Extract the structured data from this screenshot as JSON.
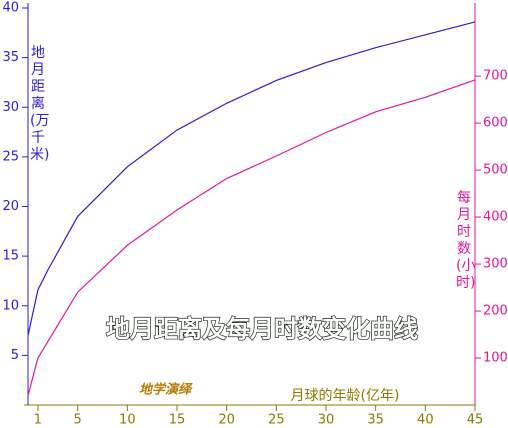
{
  "chart_data": {
    "type": "line",
    "title": "地月距离及每月时数变化曲线",
    "watermark": "地学演绎",
    "x_label": "月球的年龄(亿年)",
    "y_label": "地月距离(万千米)",
    "y2_label": "每月时数(小时)",
    "x": [
      0,
      1,
      2,
      5,
      10,
      15,
      20,
      25,
      30,
      35,
      40,
      45
    ],
    "series": [
      {
        "name": "地月距离",
        "color": "#2a1fd0",
        "values": [
          7,
          11.6,
          13.6,
          19,
          24,
          27.7,
          30.4,
          32.7,
          34.5,
          36,
          37.3,
          38.6
        ]
      },
      {
        "name": "每月时数",
        "color": "#e0179c",
        "axis": "y2",
        "values": [
          20,
          100,
          135,
          240,
          340,
          415,
          482,
          530,
          580,
          624,
          655,
          692
        ]
      }
    ],
    "xlim": [
      0,
      45
    ],
    "xticks": [
      1,
      5,
      10,
      15,
      20,
      25,
      30,
      35,
      40,
      45
    ],
    "ylim": [
      0,
      40
    ],
    "yticks": [
      5,
      10,
      15,
      20,
      25,
      30,
      35,
      40
    ],
    "y2lim": [
      0,
      845
    ],
    "y2ticks": [
      100,
      200,
      300,
      400,
      500,
      600,
      700
    ]
  }
}
